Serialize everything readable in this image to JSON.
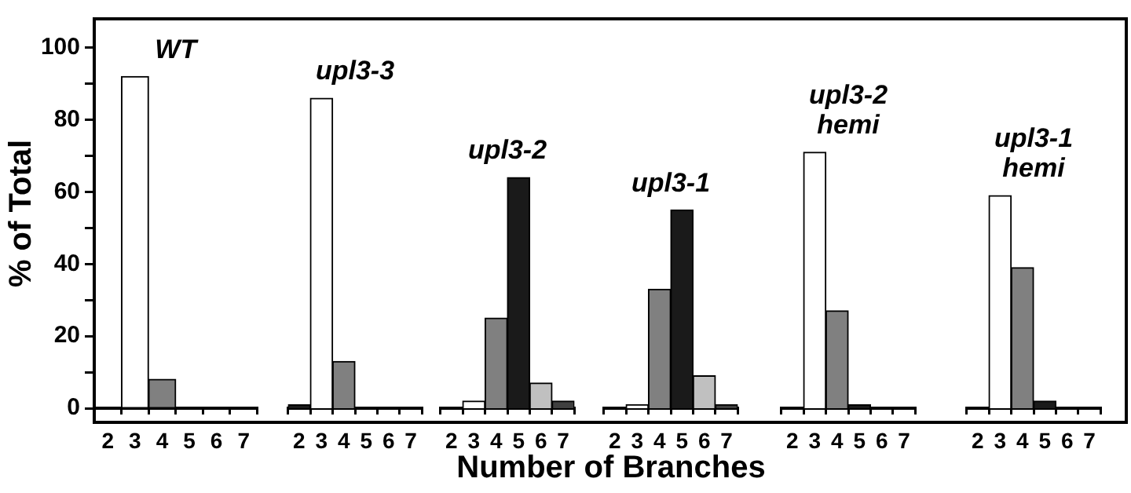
{
  "chart_data": [
    {
      "type": "bar",
      "title": "WT",
      "ylabel": "% of Total",
      "categories": [
        "2",
        "3",
        "4",
        "5",
        "6",
        "7"
      ],
      "values": [
        0,
        92,
        8,
        0,
        0,
        0
      ],
      "colors": [
        "#1a1a1a",
        "#ffffff",
        "#808080",
        "#1a1a1a",
        "#c0c0c0",
        "#404040"
      ],
      "ylim": [
        0,
        108
      ],
      "yticks": [
        0,
        {
          "value": 10,
          "label": null
        },
        20,
        {
          "value": 30,
          "label": null
        },
        40,
        {
          "value": 50,
          "label": null
        },
        60,
        {
          "value": 70,
          "label": null
        },
        80,
        {
          "value": 90,
          "label": null
        },
        100
      ]
    },
    {
      "type": "bar",
      "title": "upl3-3",
      "categories": [
        "2",
        "3",
        "4",
        "5",
        "6",
        "7"
      ],
      "values": [
        1,
        86,
        13,
        0,
        0,
        0
      ],
      "colors": [
        "#1a1a1a",
        "#ffffff",
        "#808080",
        "#1a1a1a",
        "#c0c0c0",
        "#404040"
      ],
      "ylim": [
        0,
        108
      ],
      "tick_labels": "x"
    },
    {
      "type": "bar",
      "title": "upl3-2",
      "categories": [
        "2",
        "3",
        "4",
        "5",
        "6",
        "7"
      ],
      "values": [
        0,
        2,
        25,
        64,
        7,
        2
      ],
      "colors": [
        "#1a1a1a",
        "#ffffff",
        "#808080",
        "#1a1a1a",
        "#c0c0c0",
        "#404040"
      ],
      "ylim": [
        0,
        108
      ],
      "tick_labels": "x"
    },
    {
      "type": "bar",
      "title": "upl3-1",
      "xlabel": "Number of Branches",
      "categories": [
        "2",
        "3",
        "4",
        "5",
        "6",
        "7"
      ],
      "values": [
        0,
        1,
        33,
        55,
        9,
        1
      ],
      "colors": [
        "#1a1a1a",
        "#ffffff",
        "#808080",
        "#1a1a1a",
        "#c0c0c0",
        "#404040"
      ],
      "ylim": [
        0,
        108
      ],
      "tick_labels": "x"
    },
    {
      "type": "bar",
      "title": "upl3-2 hemi",
      "categories": [
        "2",
        "3",
        "4",
        "5",
        "6",
        "7"
      ],
      "values": [
        0,
        71,
        27,
        1,
        0,
        0
      ],
      "colors": [
        "#1a1a1a",
        "#ffffff",
        "#808080",
        "#1a1a1a",
        "#c0c0c0",
        "#404040"
      ],
      "ylim": [
        0,
        108
      ],
      "tick_labels": "x"
    },
    {
      "type": "bar",
      "title": "upl3-1 hemi",
      "categories": [
        "2",
        "3",
        "4",
        "5",
        "6",
        "7"
      ],
      "values": [
        0,
        59,
        39,
        2,
        0,
        0
      ],
      "colors": [
        "#1a1a1a",
        "#ffffff",
        "#808080",
        "#1a1a1a",
        "#c0c0c0",
        "#404040"
      ],
      "ylim": [
        0,
        108
      ],
      "tick_labels": "x"
    }
  ]
}
